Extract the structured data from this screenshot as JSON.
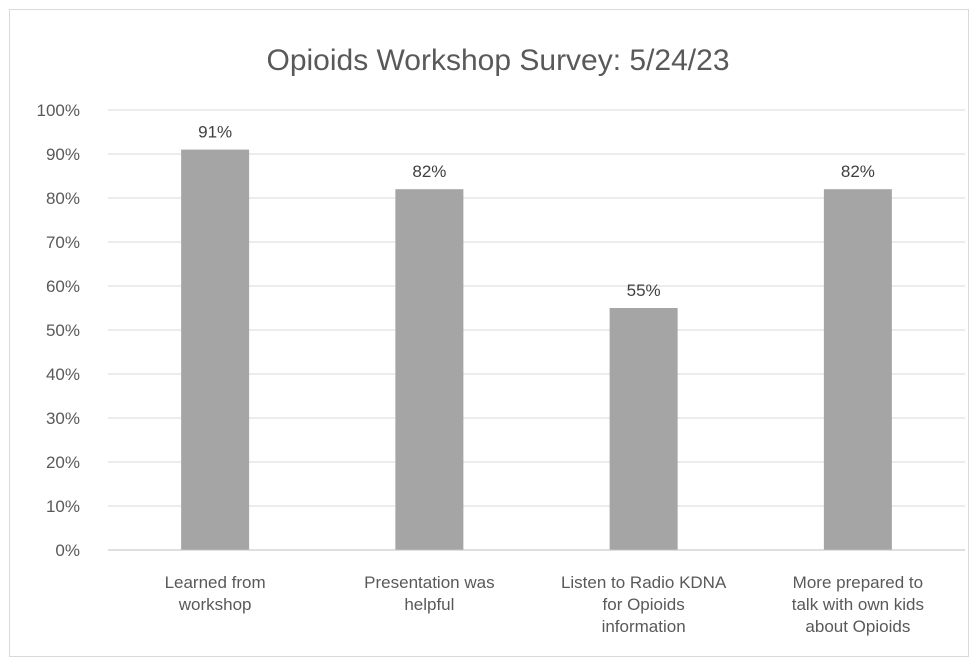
{
  "chart_data": {
    "type": "bar",
    "title": "Opioids Workshop Survey: 5/24/23",
    "xlabel": "",
    "ylabel": "",
    "categories": [
      [
        "Learned from",
        "workshop"
      ],
      [
        "Presentation was",
        "helpful"
      ],
      [
        "Listen to Radio KDNA",
        "for Opioids",
        "information"
      ],
      [
        "More prepared to",
        "talk with own kids",
        "about Opioids"
      ]
    ],
    "values": [
      91,
      82,
      55,
      82
    ],
    "data_labels": [
      "91%",
      "82%",
      "55%",
      "82%"
    ],
    "ylim": [
      0,
      100
    ],
    "yticks": [
      0,
      10,
      20,
      30,
      40,
      50,
      60,
      70,
      80,
      90,
      100
    ],
    "ytick_labels": [
      "0%",
      "10%",
      "20%",
      "30%",
      "40%",
      "50%",
      "60%",
      "70%",
      "80%",
      "90%",
      "100%"
    ],
    "grid": true,
    "legend": "none",
    "bar_color": "#a5a5a5"
  }
}
